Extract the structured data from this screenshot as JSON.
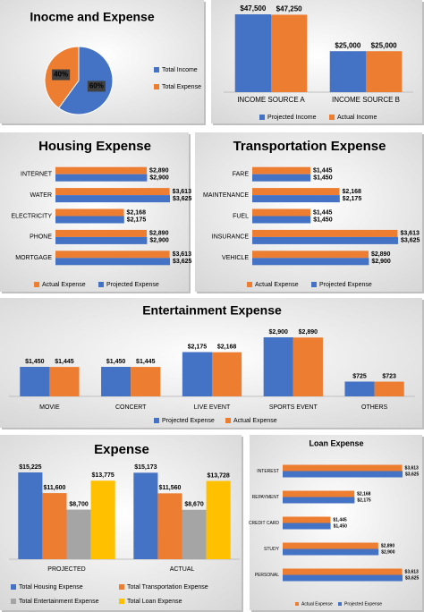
{
  "chart_data": [
    {
      "type": "pie",
      "title": "Inocme and Expense",
      "categories": [
        "Total Income",
        "Total Expense"
      ],
      "values": [
        60,
        40
      ],
      "value_labels": [
        "60%",
        "40%"
      ],
      "colors": [
        "#4472c4",
        "#ed7d31"
      ],
      "legend": "right"
    },
    {
      "type": "bar",
      "categories": [
        "INCOME SOURCE A",
        "INCOME SOURCE B"
      ],
      "series": [
        {
          "name": "Projected Income",
          "color": "#4472c4",
          "values": [
            47500,
            25000
          ],
          "value_labels": [
            "$47,500",
            "$25,000"
          ]
        },
        {
          "name": "Actual Income",
          "color": "#ed7d31",
          "values": [
            47250,
            25000
          ],
          "value_labels": [
            "$47,250",
            "$25,000"
          ]
        }
      ],
      "legend": "bottom"
    },
    {
      "type": "hbar",
      "title": "Housing Expense",
      "categories": [
        "INTERNET",
        "WATER",
        "ELECTRICITY",
        "PHONE",
        "MORTGAGE"
      ],
      "series": [
        {
          "name": "Actual Expense",
          "color": "#ed7d31",
          "values": [
            2890,
            3613,
            2168,
            2890,
            3613
          ],
          "value_labels": [
            "$2,890",
            "$3,613",
            "$2,168",
            "$2,890",
            "$3,613"
          ]
        },
        {
          "name": "Projected Expense",
          "color": "#4472c4",
          "values": [
            2900,
            3625,
            2175,
            2900,
            3625
          ],
          "value_labels": [
            "$2,900",
            "$3,625",
            "$2,175",
            "$2,900",
            "$3,625"
          ]
        }
      ],
      "legend": "bottom"
    },
    {
      "type": "hbar",
      "title": "Transportation Expense",
      "categories": [
        "FARE",
        "MAINTENANCE",
        "FUEL",
        "INSURANCE",
        "VEHICLE"
      ],
      "series": [
        {
          "name": "Actual Expense",
          "color": "#ed7d31",
          "values": [
            1445,
            2168,
            1445,
            3613,
            2890
          ],
          "value_labels": [
            "$1,445",
            "$2,168",
            "$1,445",
            "$3,613",
            "$2,890"
          ]
        },
        {
          "name": "Projected Expense",
          "color": "#4472c4",
          "values": [
            1450,
            2175,
            1450,
            3625,
            2900
          ],
          "value_labels": [
            "$1,450",
            "$2,175",
            "$1,450",
            "$3,625",
            "$2,900"
          ]
        }
      ],
      "legend": "bottom"
    },
    {
      "type": "bar",
      "title": "Entertainment Expense",
      "categories": [
        "MOVIE",
        "CONCERT",
        "LIVE EVENT",
        "SPORTS EVENT",
        "OTHERS"
      ],
      "series": [
        {
          "name": "Projected Expense",
          "color": "#4472c4",
          "values": [
            1450,
            1450,
            2175,
            2900,
            725
          ],
          "value_labels": [
            "$1,450",
            "$1,450",
            "$2,175",
            "$2,900",
            "$725"
          ]
        },
        {
          "name": "Actual Expense",
          "color": "#ed7d31",
          "values": [
            1445,
            1445,
            2168,
            2890,
            723
          ],
          "value_labels": [
            "$1,445",
            "$1,445",
            "$2,168",
            "$2,890",
            "$723"
          ]
        }
      ],
      "legend": "bottom"
    },
    {
      "type": "bar",
      "title": "Expense",
      "categories": [
        "PROJECTED",
        "ACTUAL"
      ],
      "series": [
        {
          "name": "Total Housing Expense",
          "color": "#4472c4",
          "values": [
            15225,
            15173
          ],
          "value_labels": [
            "$15,225",
            "$15,173"
          ]
        },
        {
          "name": "Total Transportation Expense",
          "color": "#ed7d31",
          "values": [
            11600,
            11560
          ],
          "value_labels": [
            "$11,600",
            "$11,560"
          ]
        },
        {
          "name": "Total Entertainment Expense",
          "color": "#a5a5a5",
          "values": [
            8700,
            8670
          ],
          "value_labels": [
            "$8,700",
            "$8,670"
          ]
        },
        {
          "name": "Total Loan Expense",
          "color": "#ffc000",
          "values": [
            13775,
            13728
          ],
          "value_labels": [
            "$13,775",
            "$13,728"
          ]
        }
      ],
      "legend": "bottom"
    },
    {
      "type": "hbar",
      "title": "Loan Expense",
      "categories": [
        "INTEREST",
        "REPAYMENT",
        "CREDIT CARD",
        "STUDY",
        "PERSONAL"
      ],
      "series": [
        {
          "name": "Actual Expense",
          "color": "#ed7d31",
          "values": [
            3613,
            2168,
            1445,
            2890,
            3613
          ],
          "value_labels": [
            "$3,613",
            "$2,168",
            "$1,445",
            "$2,890",
            "$3,613"
          ]
        },
        {
          "name": "Projected Expense",
          "color": "#4472c4",
          "values": [
            3625,
            2175,
            1450,
            2900,
            3625
          ],
          "value_labels": [
            "$3,625",
            "$2,175",
            "$1,450",
            "$2,900",
            "$3,625"
          ]
        }
      ],
      "legend": "bottom"
    }
  ]
}
